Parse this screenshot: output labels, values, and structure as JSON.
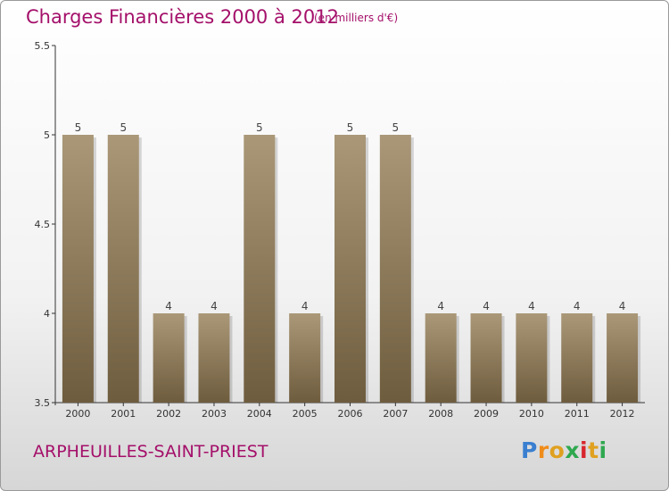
{
  "header": {
    "title": "Charges Financières 2000 à 2012",
    "unit": "(en milliers d'€)"
  },
  "footer": {
    "town": "ARPHEUILLES-SAINT-PRIEST",
    "logo_letters": [
      "P",
      "r",
      "o",
      "x",
      "i",
      "t",
      "i"
    ],
    "logo_colors": [
      "#3a7fd0",
      "#f08c1a",
      "#e0a020",
      "#2fa84f",
      "#d8262e",
      "#e0a020",
      "#2fa84f"
    ]
  },
  "colors": {
    "title": "#a4106a",
    "bar_top": "#aa9878",
    "bar_bottom": "#6e5c3e"
  },
  "chart_data": {
    "type": "bar",
    "categories": [
      "2000",
      "2001",
      "2002",
      "2003",
      "2004",
      "2005",
      "2006",
      "2007",
      "2008",
      "2009",
      "2010",
      "2011",
      "2012"
    ],
    "values": [
      5,
      5,
      4,
      4,
      5,
      4,
      5,
      5,
      4,
      4,
      4,
      4,
      4
    ],
    "data_labels": [
      "5",
      "5",
      "4",
      "4",
      "5",
      "4",
      "5",
      "5",
      "4",
      "4",
      "4",
      "4",
      "4"
    ],
    "yticks": [
      3.5,
      4,
      4.5,
      5,
      5.5
    ],
    "ytick_labels": [
      "3.5",
      "4",
      "4.5",
      "5",
      "5.5"
    ],
    "ylim": [
      3.5,
      5.5
    ],
    "title": "Charges Financières 2000 à 2012",
    "grid": false,
    "legend": false
  }
}
